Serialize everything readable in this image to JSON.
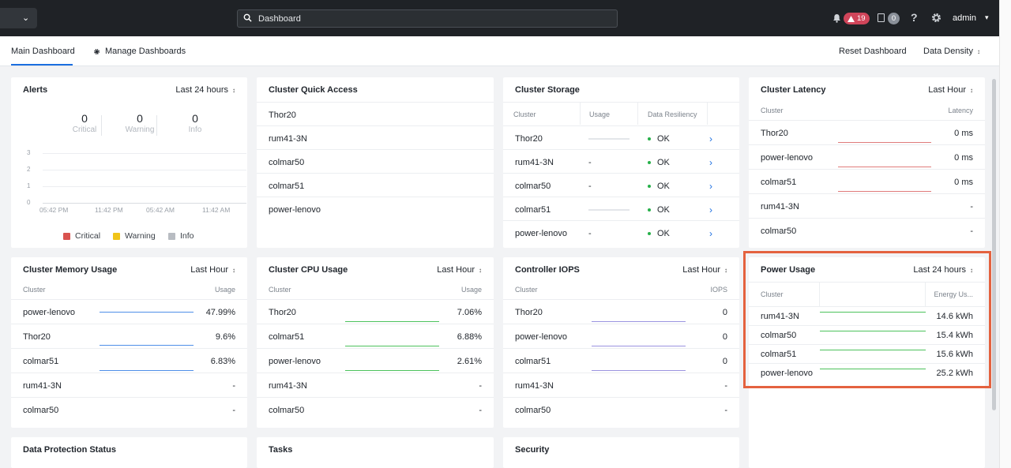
{
  "search": {
    "value": "Dashboard"
  },
  "topbar": {
    "alerts_count": "19",
    "tasks_count": "0",
    "help": "?",
    "user": "admin"
  },
  "subnav": {
    "main_tab": "Main Dashboard",
    "manage_tab": "Manage Dashboards",
    "reset": "Reset Dashboard",
    "density": "Data Density"
  },
  "alerts": {
    "title": "Alerts",
    "range": "Last 24 hours",
    "counts": [
      {
        "num": "0",
        "label": "Critical"
      },
      {
        "num": "0",
        "label": "Warning"
      },
      {
        "num": "0",
        "label": "Info"
      }
    ],
    "y_ticks": [
      "3",
      "2",
      "1",
      "0"
    ],
    "x_ticks": [
      "05:42 PM",
      "11:42 PM",
      "05:42 AM",
      "11:42 AM"
    ],
    "legend": [
      {
        "label": "Critical",
        "color": "#d9534f"
      },
      {
        "label": "Warning",
        "color": "#f0c419"
      },
      {
        "label": "Info",
        "color": "#b8bcc2"
      }
    ]
  },
  "quick_access": {
    "title": "Cluster Quick Access",
    "items": [
      "Thor20",
      "rum41-3N",
      "colmar50",
      "colmar51",
      "power-lenovo"
    ]
  },
  "storage": {
    "title": "Cluster Storage",
    "headers": [
      "Cluster",
      "Usage",
      "Data Resiliency"
    ],
    "rows": [
      {
        "cluster": "Thor20",
        "usage": "",
        "resiliency": "OK"
      },
      {
        "cluster": "rum41-3N",
        "usage": "-",
        "resiliency": "OK"
      },
      {
        "cluster": "colmar50",
        "usage": "-",
        "resiliency": "OK"
      },
      {
        "cluster": "colmar51",
        "usage": "",
        "resiliency": "OK"
      },
      {
        "cluster": "power-lenovo",
        "usage": "-",
        "resiliency": "OK"
      }
    ]
  },
  "latency": {
    "title": "Cluster Latency",
    "range": "Last Hour",
    "headers": [
      "Cluster",
      "Latency"
    ],
    "rows": [
      {
        "cluster": "Thor20",
        "value": "0 ms"
      },
      {
        "cluster": "power-lenovo",
        "value": "0 ms"
      },
      {
        "cluster": "colmar51",
        "value": "0 ms"
      },
      {
        "cluster": "rum41-3N",
        "value": "-"
      },
      {
        "cluster": "colmar50",
        "value": "-"
      }
    ]
  },
  "memory": {
    "title": "Cluster Memory Usage",
    "range": "Last Hour",
    "headers": [
      "Cluster",
      "Usage"
    ],
    "rows": [
      {
        "cluster": "power-lenovo",
        "value": "47.99%"
      },
      {
        "cluster": "Thor20",
        "value": "9.6%"
      },
      {
        "cluster": "colmar51",
        "value": "6.83%"
      },
      {
        "cluster": "rum41-3N",
        "value": "-"
      },
      {
        "cluster": "colmar50",
        "value": "-"
      }
    ]
  },
  "cpu": {
    "title": "Cluster CPU Usage",
    "range": "Last Hour",
    "headers": [
      "Cluster",
      "Usage"
    ],
    "rows": [
      {
        "cluster": "Thor20",
        "value": "7.06%"
      },
      {
        "cluster": "colmar51",
        "value": "6.88%"
      },
      {
        "cluster": "power-lenovo",
        "value": "2.61%"
      },
      {
        "cluster": "rum41-3N",
        "value": "-"
      },
      {
        "cluster": "colmar50",
        "value": "-"
      }
    ]
  },
  "iops": {
    "title": "Controller IOPS",
    "range": "Last Hour",
    "headers": [
      "Cluster",
      "IOPS"
    ],
    "rows": [
      {
        "cluster": "Thor20",
        "value": "0"
      },
      {
        "cluster": "power-lenovo",
        "value": "0"
      },
      {
        "cluster": "colmar51",
        "value": "0"
      },
      {
        "cluster": "rum41-3N",
        "value": "-"
      },
      {
        "cluster": "colmar50",
        "value": "-"
      }
    ]
  },
  "power": {
    "title": "Power Usage",
    "range": "Last 24 hours",
    "headers": [
      "Cluster",
      "Energy Us..."
    ],
    "rows": [
      {
        "cluster": "rum41-3N",
        "value": "14.6 kWh"
      },
      {
        "cluster": "colmar50",
        "value": "15.4 kWh"
      },
      {
        "cluster": "colmar51",
        "value": "15.6 kWh"
      },
      {
        "cluster": "power-lenovo",
        "value": "25.2 kWh"
      }
    ]
  },
  "bottom": {
    "data_protection": "Data Protection Status",
    "tasks": "Tasks",
    "security": "Security"
  },
  "colors": {
    "accent": "#1b6ee0",
    "highlight": "#e4623f",
    "ok": "#27b04a",
    "latency_spark": "#e07b7b",
    "memory_spark": "#4f8fe8",
    "cpu_spark": "#4cc25c",
    "iops_spark": "#9b94e0",
    "power_spark": "#4cc25c"
  }
}
